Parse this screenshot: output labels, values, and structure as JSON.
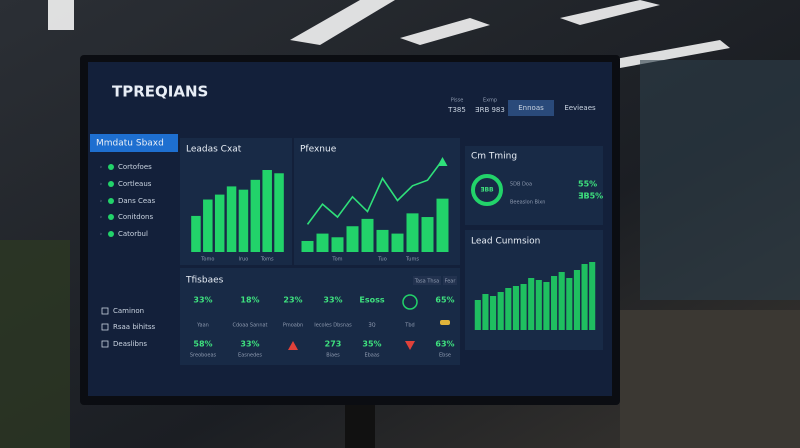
{
  "header": {
    "title": "TPREQIANS",
    "buttons": [
      {
        "label": "Pisse",
        "sub": "T385"
      },
      {
        "label": "Exmp",
        "sub": "ƎRB 983"
      },
      {
        "label": "Ennoas"
      },
      {
        "label": "Eevieaes"
      }
    ]
  },
  "sidebar": {
    "items": [
      "Mmdatu Sbaxd",
      "Cortofoes",
      "Cortleaus",
      "Dans Ceas",
      "Conitdons",
      "Catorbul"
    ],
    "footer": [
      "Caminon",
      "Rsaa bihitss",
      "Deaslibns"
    ]
  },
  "chart_data": [
    {
      "type": "bar",
      "title": "Leadas Cxat",
      "categories": [
        null,
        "Tomo",
        null,
        null,
        "Iruo",
        null,
        "Toms",
        null
      ],
      "values": [
        22,
        32,
        35,
        40,
        38,
        44,
        50,
        48
      ],
      "color": "#22d36a"
    },
    {
      "type": "combo",
      "title": "Pfexnue",
      "categories": [
        null,
        null,
        "Tom",
        null,
        null,
        "Tuo",
        null,
        "Tums",
        null,
        null
      ],
      "series": [
        {
          "type": "bar",
          "color": "#22d36a",
          "values": [
            12,
            20,
            16,
            28,
            36,
            24,
            20,
            42,
            38,
            58
          ]
        },
        {
          "type": "line",
          "color": "#2fe07a",
          "values": [
            30,
            52,
            38,
            60,
            44,
            80,
            56,
            72,
            78,
            100
          ]
        }
      ]
    },
    {
      "type": "bar",
      "title": "Lead Cunmsion",
      "values": [
        30,
        36,
        34,
        38,
        42,
        44,
        46,
        52,
        50,
        48,
        54,
        58,
        52,
        60,
        66,
        68
      ],
      "color": "#1fbf60"
    }
  ],
  "timing": {
    "title": "Cm Tming",
    "center": "ƎBB",
    "legend": [
      "5DB Doa",
      "Beeaslon Bixn"
    ],
    "stats": [
      "55%",
      "ƎB5%"
    ]
  },
  "kpis": {
    "title": "Tfisbaes",
    "buttons": [
      "Tasa Thsa",
      "Fear"
    ],
    "columns": [
      {
        "top": "33%",
        "top_label": "Yaan",
        "bottom": "58%",
        "bottom_label": "Sreoboeas"
      },
      {
        "top": "18%",
        "top_label": "Cdoaa Sannat",
        "bottom": "33%",
        "bottom_label": "Easnedes"
      },
      {
        "top": "23%",
        "top_label": "Pmoabn"
      },
      {
        "top": "33%",
        "top_label": "Iecoles Dbsnas",
        "bottom": "273",
        "bottom_label": "Biaes"
      },
      {
        "top": "Esoss",
        "top_label": "ƎQ",
        "bottom": "35%",
        "bottom_label": "Ebaas"
      },
      {
        "top_label": "Tbd"
      },
      {
        "top": "65%",
        "bottom": "63%",
        "bottom_label": "Ebse"
      }
    ]
  }
}
